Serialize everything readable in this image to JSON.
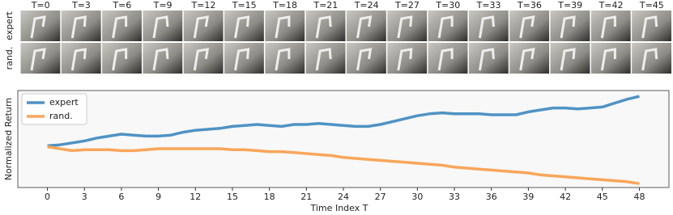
{
  "image_grid": {
    "columns": [
      "T=0",
      "T=3",
      "T=6",
      "T=9",
      "T=12",
      "T=15",
      "T=18",
      "T=21",
      "T=24",
      "T=27",
      "T=30",
      "T=33",
      "T=36",
      "T=39",
      "T=42",
      "T=45"
    ],
    "rows": [
      "expert",
      "rand."
    ]
  },
  "chart_data": {
    "type": "line",
    "xlabel": "Time Index T",
    "ylabel": "Normalized Return",
    "x": [
      0,
      1,
      2,
      3,
      4,
      5,
      6,
      7,
      8,
      9,
      10,
      11,
      12,
      13,
      14,
      15,
      16,
      17,
      18,
      19,
      20,
      21,
      22,
      23,
      24,
      25,
      26,
      27,
      28,
      29,
      30,
      31,
      32,
      33,
      34,
      35,
      36,
      37,
      38,
      39,
      40,
      41,
      42,
      43,
      44,
      45,
      46,
      47,
      48
    ],
    "series": [
      {
        "name": "expert",
        "color": "#4f93c4",
        "values": [
          0.43,
          0.44,
          0.46,
          0.48,
          0.51,
          0.53,
          0.55,
          0.54,
          0.53,
          0.53,
          0.54,
          0.57,
          0.59,
          0.6,
          0.61,
          0.63,
          0.64,
          0.65,
          0.64,
          0.63,
          0.65,
          0.65,
          0.66,
          0.65,
          0.64,
          0.63,
          0.63,
          0.65,
          0.68,
          0.71,
          0.74,
          0.76,
          0.77,
          0.76,
          0.76,
          0.76,
          0.75,
          0.75,
          0.75,
          0.78,
          0.8,
          0.82,
          0.82,
          0.81,
          0.82,
          0.83,
          0.87,
          0.91,
          0.94
        ]
      },
      {
        "name": "rand.",
        "color": "#f9a65a",
        "values": [
          0.42,
          0.4,
          0.38,
          0.39,
          0.39,
          0.39,
          0.38,
          0.38,
          0.39,
          0.4,
          0.4,
          0.4,
          0.4,
          0.4,
          0.4,
          0.39,
          0.39,
          0.38,
          0.37,
          0.37,
          0.36,
          0.35,
          0.34,
          0.33,
          0.31,
          0.3,
          0.29,
          0.28,
          0.27,
          0.26,
          0.25,
          0.24,
          0.23,
          0.21,
          0.2,
          0.19,
          0.18,
          0.17,
          0.16,
          0.15,
          0.13,
          0.12,
          0.11,
          0.1,
          0.09,
          0.08,
          0.07,
          0.06,
          0.04
        ]
      }
    ],
    "xlim": [
      -2.4,
      50.4
    ],
    "ylim": [
      0,
      1
    ],
    "xticks": [
      0,
      3,
      6,
      9,
      12,
      15,
      18,
      21,
      24,
      27,
      30,
      33,
      36,
      39,
      42,
      45,
      48
    ],
    "legend": "upper left",
    "grid": false
  }
}
